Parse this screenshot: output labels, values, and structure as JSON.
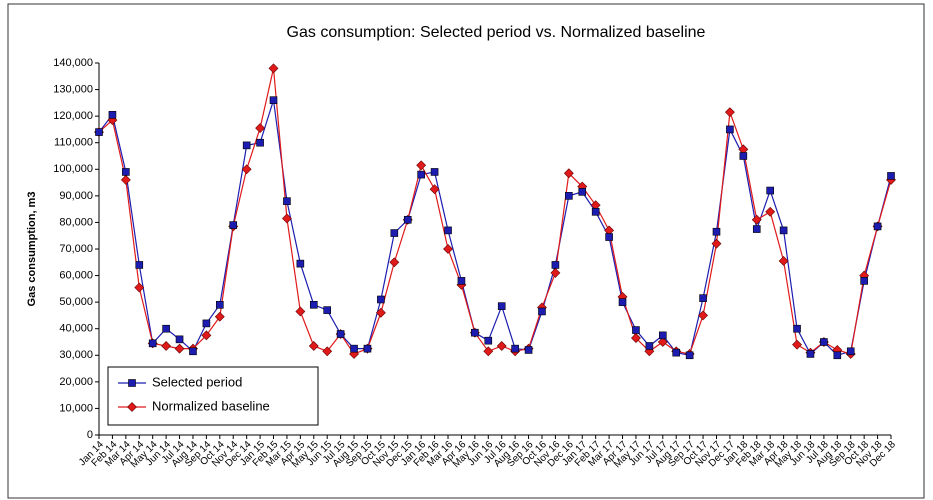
{
  "chart_data": {
    "type": "line",
    "title": "Gas consumption: Selected period vs. Normalized baseline",
    "y_label": "Gas consumption, m3",
    "categories": [
      "Jan 14",
      "Feb 14",
      "Mar 14",
      "Apr 14",
      "May 14",
      "Jun 14",
      "Jul 14",
      "Aug 14",
      "Sep 14",
      "Oct 14",
      "Nov 14",
      "Dec 14",
      "Jan 15",
      "Feb 15",
      "Mar 15",
      "Apr 15",
      "May 15",
      "Jun 15",
      "Jul 15",
      "Aug 15",
      "Sep 15",
      "Oct 15",
      "Nov 15",
      "Dec 15",
      "Jan 16",
      "Feb 16",
      "Mar 16",
      "Apr 16",
      "May 16",
      "Jun 16",
      "Jul 16",
      "Aug 16",
      "Sep 16",
      "Oct 16",
      "Nov 16",
      "Dec 16",
      "Jan 17",
      "Feb 17",
      "Mar 17",
      "Apr 17",
      "May 17",
      "Jun 17",
      "Jul 17",
      "Aug 17",
      "Sep 17",
      "Oct 17",
      "Nov 17",
      "Dec 17",
      "Jan 18",
      "Feb 18",
      "Mar 18",
      "Apr 18",
      "May 18",
      "Jun 18",
      "Jul 18",
      "Aug 18",
      "Sep 18",
      "Oct 18",
      "Nov 18",
      "Dec 18"
    ],
    "series": [
      {
        "name": "Selected period",
        "color": "#1c1cb0",
        "marker": "square",
        "values": [
          114000,
          120500,
          99000,
          64000,
          34500,
          40000,
          36000,
          31500,
          42000,
          49000,
          79000,
          109000,
          110000,
          126000,
          88000,
          64500,
          49000,
          47000,
          38000,
          32500,
          32500,
          51000,
          76000,
          81000,
          98000,
          99000,
          77000,
          58000,
          38500,
          35500,
          48500,
          32500,
          32000,
          46500,
          64000,
          90000,
          91500,
          84000,
          74500,
          50000,
          39500,
          33500,
          37500,
          31000,
          30000,
          51500,
          76500,
          115000,
          105000,
          77500,
          92000,
          77000,
          40000,
          30500,
          35000,
          30000,
          31500,
          58000,
          78500,
          97500
        ]
      },
      {
        "name": "Normalized baseline",
        "color": "#e01a1a",
        "marker": "diamond",
        "values": [
          114000,
          118500,
          96000,
          55500,
          34500,
          33500,
          32500,
          32500,
          37500,
          44500,
          78500,
          100000,
          115500,
          138000,
          81500,
          46500,
          33500,
          31500,
          38000,
          30500,
          32500,
          46000,
          65000,
          81000,
          101500,
          92500,
          70000,
          56500,
          38500,
          31500,
          33500,
          31500,
          32500,
          48000,
          61000,
          98500,
          93500,
          86500,
          77000,
          52000,
          36500,
          31500,
          35000,
          31500,
          30500,
          45000,
          72000,
          121500,
          107500,
          81000,
          84000,
          65500,
          34000,
          31000,
          35000,
          32000,
          30500,
          60000,
          78500,
          96000
        ]
      }
    ],
    "ylim": [
      0,
      140000
    ],
    "yticks": [
      0,
      {
        "value": 10000,
        "label": "10,000"
      },
      {
        "value": 20000,
        "label": "20,000"
      },
      {
        "value": 30000,
        "label": "30,000"
      },
      {
        "value": 40000,
        "label": "40,000"
      },
      {
        "value": 50000,
        "label": "50,000"
      },
      {
        "value": 60000,
        "label": "60,000"
      },
      {
        "value": 70000,
        "label": "70,000"
      },
      {
        "value": 80000,
        "label": "80,000"
      },
      {
        "value": 90000,
        "label": "90,000"
      },
      {
        "value": 100000,
        "label": "100,000"
      },
      {
        "value": 110000,
        "label": "110,000"
      },
      {
        "value": 120000,
        "label": "120,000"
      },
      {
        "value": 130000,
        "label": "130,000"
      },
      {
        "value": 140000,
        "label": "140,000"
      }
    ],
    "grid": false,
    "legend": "bottom-left"
  }
}
